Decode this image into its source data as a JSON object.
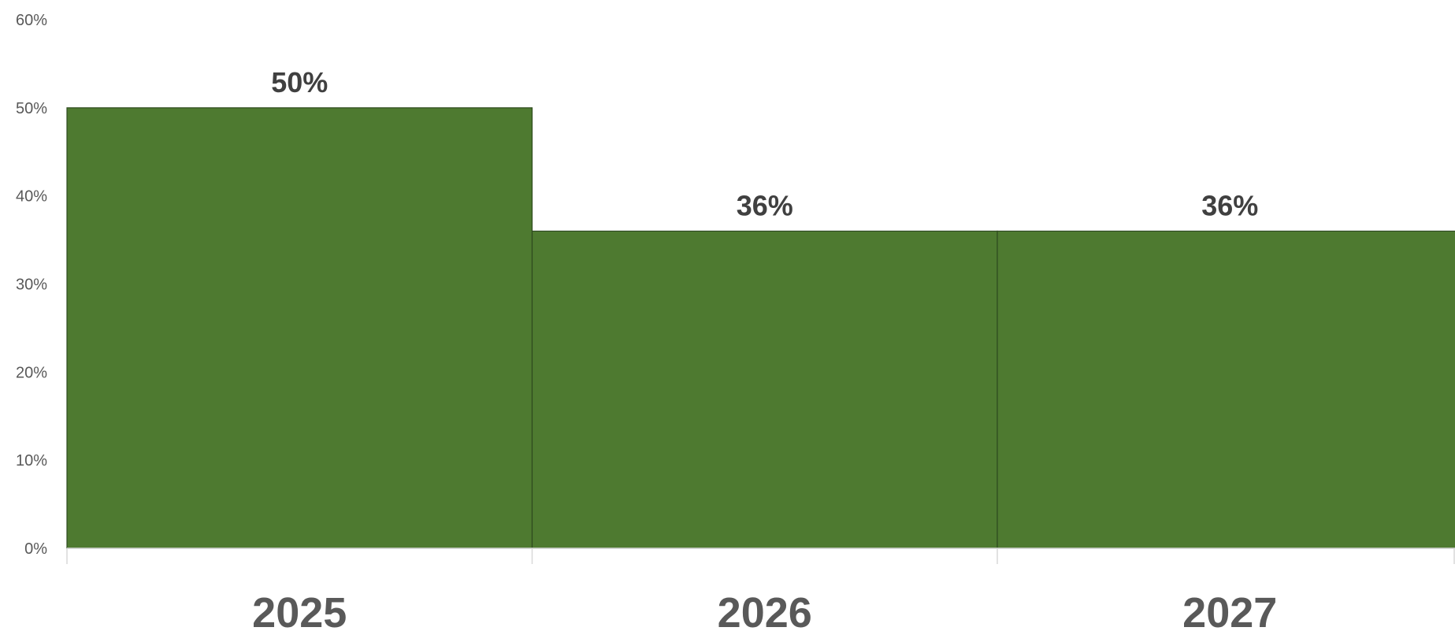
{
  "chart_data": {
    "type": "bar",
    "title": "",
    "xlabel": "",
    "ylabel": "",
    "categories": [
      "2025",
      "2026",
      "2027"
    ],
    "values": [
      50,
      36,
      36
    ],
    "data_labels": [
      "50%",
      "36%",
      "36%"
    ],
    "ylim": [
      0,
      60
    ],
    "y_ticks": [
      0,
      10,
      20,
      30,
      40,
      50,
      60
    ],
    "y_tick_labels": [
      "0%",
      "10%",
      "20%",
      "30%",
      "40%",
      "50%",
      "60%"
    ],
    "grid": false,
    "legend": "none",
    "colors": {
      "bar": "#4e7a30",
      "bar_border": "#2e4a1f",
      "axis": "#d9d9d9",
      "tick_text": "#595959",
      "data_label_text": "#404040"
    }
  }
}
